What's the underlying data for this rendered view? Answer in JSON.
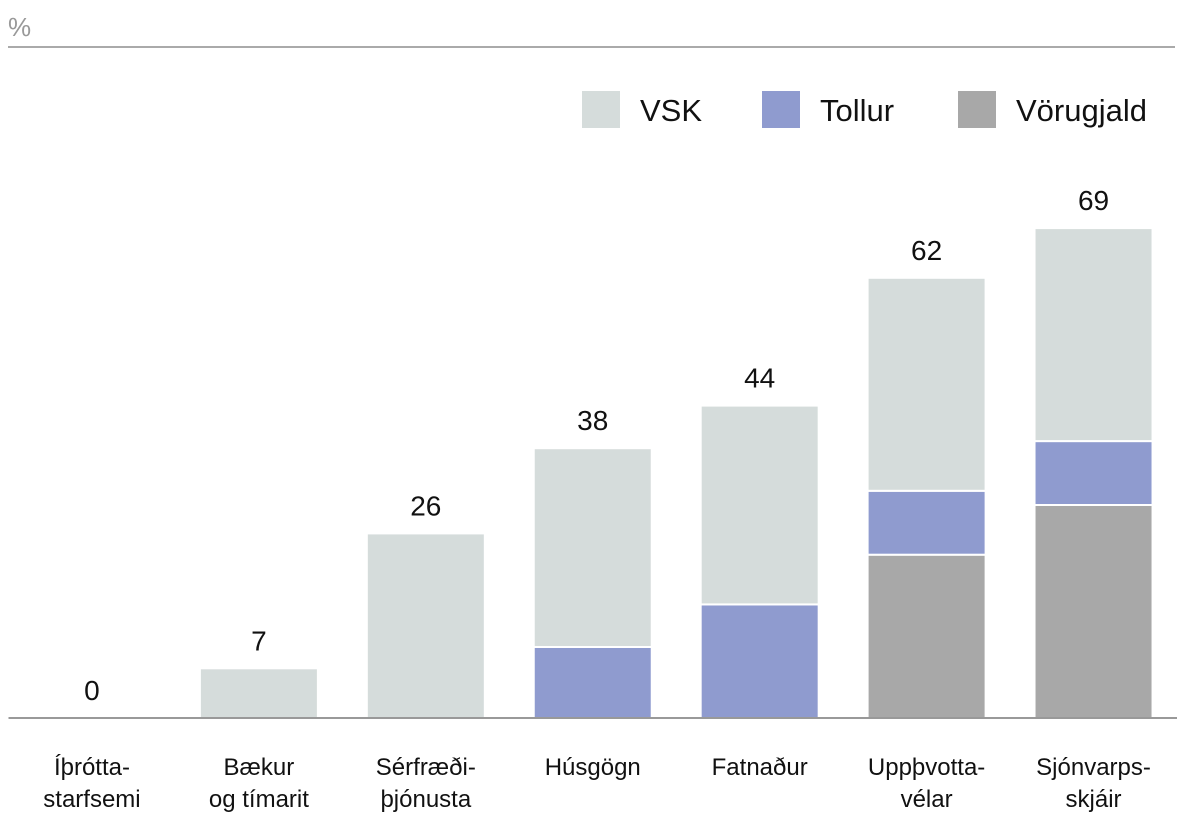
{
  "chart_data": {
    "type": "stacked_bar",
    "y_label": "%",
    "categories": [
      [
        "Íþrótta-",
        "starfsemi"
      ],
      [
        "Bækur",
        "og tímarit"
      ],
      [
        "Sérfræði-",
        "þjónusta"
      ],
      [
        "Húsgögn"
      ],
      [
        "Fatnaður"
      ],
      [
        "Uppþvotta-",
        "vélar"
      ],
      [
        "Sjónvarps-",
        "skjáir"
      ]
    ],
    "series": [
      {
        "name": "Vörugjald",
        "color": "#a8a8a8",
        "values": [
          0,
          0,
          0,
          0,
          0,
          23,
          30
        ]
      },
      {
        "name": "Tollur",
        "color": "#8f9bcf",
        "values": [
          0,
          0,
          0,
          10,
          16,
          9,
          9
        ]
      },
      {
        "name": "VSK",
        "color": "#d5dcdb",
        "values": [
          0,
          7,
          26,
          28,
          28,
          30,
          30
        ]
      }
    ],
    "totals": [
      0,
      7,
      26,
      38,
      44,
      62,
      69
    ],
    "legend_order": [
      "VSK",
      "Tollur",
      "Vörugjald"
    ],
    "ylim": [
      0,
      80
    ]
  }
}
